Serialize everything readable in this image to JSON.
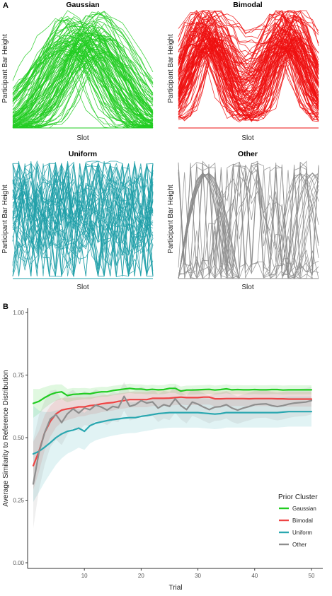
{
  "panel_a_label": "A",
  "panel_b_label": "B",
  "colors": {
    "gaussian": "#22cc22",
    "bimodal": "#ee1111",
    "uniform": "#1e9fa8",
    "other": "#8c8c8c"
  },
  "chart_data": [
    {
      "type": "line",
      "title": "Gaussian",
      "xlabel": "Slot",
      "ylabel": "Participant Bar Height",
      "shape": "gaussian",
      "n_lines": 110,
      "color": "#22cc22"
    },
    {
      "type": "line",
      "title": "Bimodal",
      "xlabel": "Slot",
      "ylabel": "Participant Bar Height",
      "shape": "bimodal",
      "n_lines": 110,
      "color": "#ee1111"
    },
    {
      "type": "line",
      "title": "Uniform",
      "xlabel": "Slot",
      "ylabel": "Participant Bar Height",
      "shape": "uniform",
      "n_lines": 45,
      "color": "#1e9fa8"
    },
    {
      "type": "line",
      "title": "Other",
      "xlabel": "Slot",
      "ylabel": "Participant Bar Height",
      "shape": "other",
      "n_lines": 30,
      "color": "#8c8c8c"
    },
    {
      "type": "line",
      "title": "",
      "xlabel": "Trial",
      "ylabel": "Average Similarity to Reference Distribution",
      "xlim": [
        0,
        52
      ],
      "ylim": [
        0,
        1
      ],
      "xticks": [
        10,
        20,
        30,
        40,
        50
      ],
      "xtick_labels": [
        "10",
        "20",
        "30",
        "40",
        "50"
      ],
      "yticks": [
        0,
        0.25,
        0.5,
        0.75,
        1
      ],
      "ytick_labels": [
        "0.00",
        "0.25",
        "0.50",
        "0.75",
        "1.00"
      ],
      "grid": false,
      "legend_title": "Prior Cluster",
      "legend_position": "bottom-right",
      "x": [
        1,
        2,
        3,
        4,
        5,
        6,
        7,
        8,
        9,
        10,
        11,
        12,
        13,
        14,
        15,
        16,
        17,
        18,
        19,
        20,
        21,
        22,
        23,
        24,
        25,
        26,
        27,
        28,
        29,
        30,
        31,
        32,
        33,
        34,
        35,
        36,
        37,
        38,
        39,
        40,
        41,
        42,
        43,
        44,
        45,
        46,
        47,
        48,
        49,
        50
      ],
      "series": [
        {
          "name": "Gaussian",
          "color": "#22cc22",
          "values": [
            0.637,
            0.645,
            0.66,
            0.672,
            0.68,
            0.683,
            0.668,
            0.673,
            0.674,
            0.676,
            0.675,
            0.68,
            0.683,
            0.683,
            0.688,
            0.691,
            0.694,
            0.697,
            0.694,
            0.694,
            0.691,
            0.693,
            0.691,
            0.692,
            0.697,
            0.697,
            0.686,
            0.69,
            0.69,
            0.691,
            0.692,
            0.693,
            0.69,
            0.692,
            0.695,
            0.691,
            0.692,
            0.691,
            0.691,
            0.692,
            0.691,
            0.691,
            0.692,
            0.692,
            0.69,
            0.691,
            0.691,
            0.691,
            0.691,
            0.691
          ],
          "band": 0.018
        },
        {
          "name": "Bimodal",
          "color": "#ee4444",
          "values": [
            0.388,
            0.445,
            0.52,
            0.565,
            0.595,
            0.61,
            0.615,
            0.618,
            0.623,
            0.623,
            0.628,
            0.63,
            0.635,
            0.638,
            0.64,
            0.645,
            0.648,
            0.652,
            0.652,
            0.652,
            0.652,
            0.657,
            0.657,
            0.657,
            0.658,
            0.66,
            0.662,
            0.66,
            0.66,
            0.66,
            0.662,
            0.662,
            0.655,
            0.655,
            0.656,
            0.656,
            0.656,
            0.656,
            0.655,
            0.656,
            0.656,
            0.656,
            0.656,
            0.655,
            0.655,
            0.654,
            0.654,
            0.654,
            0.654,
            0.654
          ],
          "band": 0.03
        },
        {
          "name": "Uniform",
          "color": "#2aa7b0",
          "values": [
            0.435,
            0.445,
            0.462,
            0.48,
            0.5,
            0.515,
            0.525,
            0.53,
            0.538,
            0.525,
            0.548,
            0.558,
            0.563,
            0.568,
            0.572,
            0.575,
            0.578,
            0.58,
            0.58,
            0.585,
            0.588,
            0.592,
            0.596,
            0.598,
            0.6,
            0.6,
            0.6,
            0.6,
            0.6,
            0.6,
            0.598,
            0.596,
            0.594,
            0.596,
            0.6,
            0.6,
            0.6,
            0.6,
            0.6,
            0.6,
            0.6,
            0.6,
            0.6,
            0.6,
            0.602,
            0.604,
            0.604,
            0.604,
            0.604,
            0.604
          ],
          "band": 0.06
        },
        {
          "name": "Other",
          "color": "#8e8e8e",
          "values": [
            0.315,
            0.44,
            0.52,
            0.575,
            0.592,
            0.56,
            0.595,
            0.615,
            0.598,
            0.618,
            0.612,
            0.63,
            0.622,
            0.61,
            0.625,
            0.62,
            0.665,
            0.625,
            0.632,
            0.648,
            0.638,
            0.643,
            0.618,
            0.632,
            0.625,
            0.655,
            0.628,
            0.612,
            0.642,
            0.634,
            0.622,
            0.612,
            0.622,
            0.624,
            0.632,
            0.618,
            0.61,
            0.618,
            0.624,
            0.632,
            0.634,
            0.635,
            0.628,
            0.624,
            0.628,
            0.634,
            0.638,
            0.64,
            0.642,
            0.648
          ],
          "band": 0.055
        }
      ]
    }
  ]
}
